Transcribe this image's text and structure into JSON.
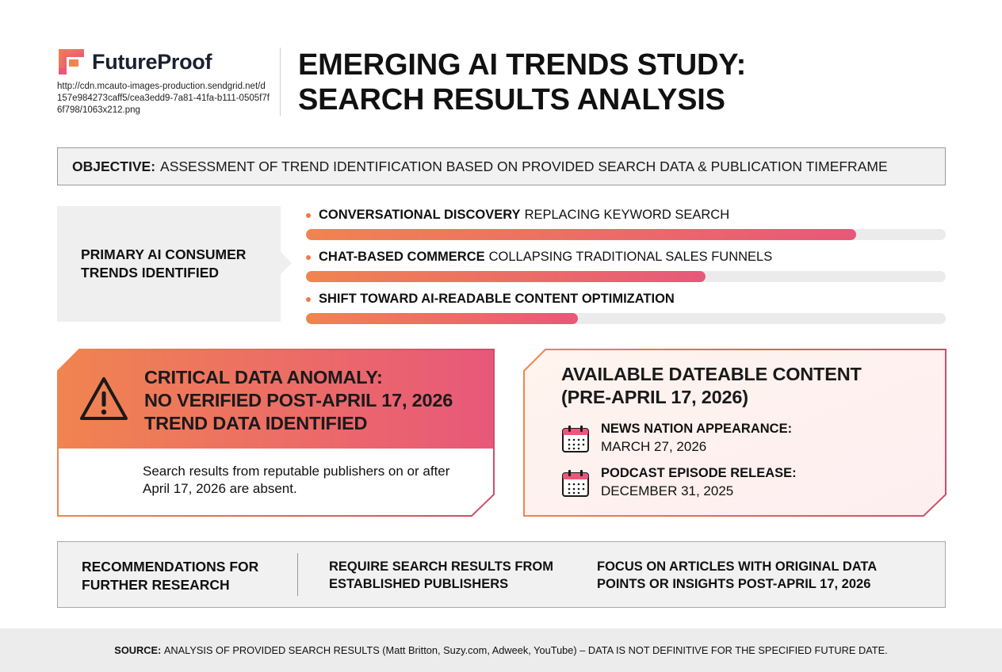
{
  "header": {
    "brand": "FutureProof",
    "brand_url": "http://cdn.mcauto-images-production.sendgrid.net/d157e984273caff5/cea3edd9-7a81-41fa-b111-0505f7f6f798/1063x212.png",
    "title_line1": "EMERGING AI TRENDS STUDY:",
    "title_line2": "SEARCH RESULTS ANALYSIS",
    "logo_icon": "futureproof-logo-icon",
    "accent_colors": [
      "#f08450",
      "#e8587a"
    ]
  },
  "objective": {
    "label": "OBJECTIVE:",
    "text": "ASSESSMENT OF TREND IDENTIFICATION BASED ON PROVIDED SEARCH DATA & PUBLICATION TIMEFRAME"
  },
  "trends": {
    "label_line1": "PRIMARY AI CONSUMER",
    "label_line2": "TRENDS IDENTIFIED",
    "items": [
      {
        "bold": "CONVERSATIONAL DISCOVERY",
        "rest": "REPLACING KEYWORD SEARCH",
        "level": 0.86
      },
      {
        "bold": "CHAT-BASED COMMERCE",
        "rest": "COLLAPSING TRADITIONAL SALES FUNNELS",
        "level": 0.625
      },
      {
        "bold": "SHIFT TOWARD AI-READABLE CONTENT OPTIMIZATION",
        "rest": "",
        "level": 0.425
      }
    ]
  },
  "anomaly": {
    "title_line1": "CRITICAL DATA ANOMALY:",
    "title_line2": "NO VERIFIED POST-APRIL 17, 2026",
    "title_line3": "TREND DATA IDENTIFIED",
    "body": "Search results from reputable publishers on or after April 17, 2026 are absent.",
    "icon": "warning-icon"
  },
  "dateable": {
    "title_line1": "AVAILABLE DATEABLE CONTENT",
    "title_line2": "(PRE-APRIL 17, 2026)",
    "events": [
      {
        "label": "NEWS NATION APPEARANCE:",
        "date": "MARCH 27, 2026",
        "icon": "calendar-icon"
      },
      {
        "label": "PODCAST EPISODE RELEASE:",
        "date": "DECEMBER 31, 2025",
        "icon": "calendar-icon"
      }
    ]
  },
  "recommendations": {
    "title_line1": "RECOMMENDATIONS FOR",
    "title_line2": "FURTHER RESEARCH",
    "items": [
      {
        "line1": "REQUIRE SEARCH RESULTS FROM",
        "line2": "ESTABLISHED PUBLISHERS"
      },
      {
        "line1": "FOCUS ON ARTICLES WITH ORIGINAL DATA",
        "line2": "POINTS OR INSIGHTS POST-APRIL 17, 2026"
      }
    ]
  },
  "source": {
    "label": "SOURCE:",
    "text": "ANALYSIS OF PROVIDED SEARCH RESULTS (Matt Britton, Suzy.com, Adweek, YouTube) – DATA IS NOT DEFINITIVE FOR THE SPECIFIED FUTURE DATE."
  }
}
